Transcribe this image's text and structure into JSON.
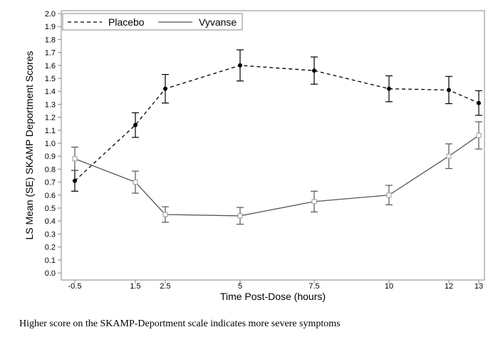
{
  "chart_data": {
    "type": "line",
    "title": "",
    "xlabel": "Time Post-Dose (hours)",
    "ylabel": "LS Mean (SE) SKAMP Deportment Scores",
    "x": [
      -0.5,
      1.5,
      2.5,
      5,
      7.5,
      10,
      12,
      13
    ],
    "x_tick_labels": [
      "-0.5",
      "1.5",
      "2.5",
      "5",
      "7.5",
      "10",
      "12",
      "13"
    ],
    "ylim": [
      0.0,
      2.0
    ],
    "y_tick_labels": [
      "0.0",
      "0.1",
      "0.2",
      "0.3",
      "0.4",
      "0.5",
      "0.6",
      "0.7",
      "0.8",
      "0.9",
      "1.0",
      "1.1",
      "1.2",
      "1.3",
      "1.4",
      "1.5",
      "1.6",
      "1.7",
      "1.8",
      "1.9",
      "2.0"
    ],
    "grid": false,
    "legend_position": "top-left",
    "series": [
      {
        "name": "Placebo",
        "line_style": "dashed",
        "marker": "filled-circle",
        "color": "#000000",
        "values": [
          0.71,
          1.14,
          1.42,
          1.6,
          1.56,
          1.42,
          1.41,
          1.31
        ],
        "se": [
          0.08,
          0.095,
          0.11,
          0.12,
          0.105,
          0.1,
          0.105,
          0.095
        ]
      },
      {
        "name": "Vyvanse",
        "line_style": "solid",
        "marker": "open-square",
        "color": "#555555",
        "values": [
          0.88,
          0.7,
          0.45,
          0.44,
          0.55,
          0.6,
          0.9,
          1.06
        ],
        "se": [
          0.09,
          0.085,
          0.06,
          0.065,
          0.08,
          0.075,
          0.095,
          0.105
        ]
      }
    ]
  },
  "footnote": "Higher score on the SKAMP-Deportment scale indicates more severe symptoms"
}
